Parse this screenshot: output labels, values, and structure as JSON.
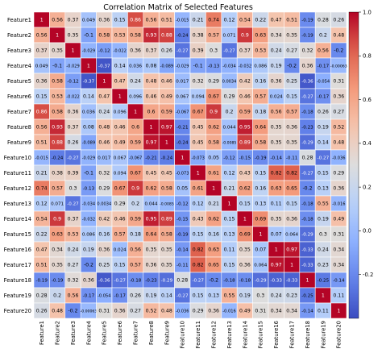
{
  "chart_data": {
    "type": "heatmap",
    "title": "Correlation Matrix of Selected Features",
    "colormap": "coolwarm",
    "vmin": -0.4,
    "vmax": 1.0,
    "colorbar_ticks": [
      -0.2,
      0.0,
      0.2,
      0.4,
      0.6,
      0.8,
      1.0
    ],
    "labels": [
      "Feature1",
      "Feature2",
      "Feature3",
      "Feature4",
      "Feature5",
      "Feature6",
      "Feature7",
      "Feature8",
      "Feature9",
      "Feature10",
      "Feature11",
      "Feature12",
      "Feature13",
      "Feature14",
      "Feature15",
      "Feature16",
      "Feature17",
      "Feature18",
      "Feature19",
      "Feature20"
    ],
    "matrix": [
      [
        1,
        0.56,
        0.37,
        0.049,
        0.36,
        0.15,
        0.86,
        0.56,
        0.51,
        -0.015,
        0.21,
        0.74,
        0.12,
        0.54,
        0.22,
        0.47,
        0.51,
        -0.19,
        0.28,
        0.26
      ],
      [
        0.56,
        1,
        0.35,
        -0.1,
        0.58,
        0.53,
        0.58,
        0.93,
        0.88,
        -0.24,
        0.38,
        0.57,
        0.071,
        0.9,
        0.63,
        0.34,
        0.35,
        -0.19,
        0.2,
        0.48
      ],
      [
        0.37,
        0.35,
        1,
        -0.029,
        -0.12,
        -0.022,
        0.36,
        0.37,
        0.26,
        -0.27,
        0.39,
        0.3,
        -0.27,
        0.37,
        0.53,
        0.24,
        0.27,
        0.32,
        0.56,
        -0.2
      ],
      [
        0.049,
        -0.1,
        -0.029,
        1,
        -0.37,
        0.14,
        0.036,
        0.08,
        -0.089,
        -0.029,
        -0.1,
        -0.13,
        -0.034,
        -0.032,
        0.086,
        0.19,
        -0.2,
        0.36,
        -0.17,
        -0.00063
      ],
      [
        0.36,
        0.58,
        -0.12,
        -0.37,
        1,
        0.47,
        0.24,
        0.48,
        0.46,
        0.017,
        0.32,
        0.29,
        0.0034,
        0.42,
        0.16,
        0.36,
        0.25,
        -0.36,
        -0.054,
        0.31
      ],
      [
        0.15,
        0.53,
        -0.022,
        0.14,
        0.47,
        1,
        0.096,
        0.46,
        0.49,
        0.067,
        0.094,
        0.67,
        0.29,
        0.46,
        0.57,
        0.024,
        0.15,
        -0.27,
        -0.17,
        0.36
      ],
      [
        0.86,
        0.58,
        0.36,
        0.036,
        0.24,
        0.096,
        1,
        0.6,
        0.59,
        -0.067,
        0.67,
        0.9,
        0.2,
        0.59,
        0.18,
        0.56,
        0.57,
        -0.18,
        0.26,
        0.27
      ],
      [
        0.56,
        0.93,
        0.37,
        0.08,
        0.48,
        0.46,
        0.6,
        1,
        0.97,
        -0.21,
        0.45,
        0.62,
        0.044,
        0.95,
        0.64,
        0.35,
        0.36,
        -0.23,
        0.19,
        0.52
      ],
      [
        0.51,
        0.88,
        0.26,
        -0.089,
        0.46,
        0.49,
        0.59,
        0.97,
        1,
        -0.24,
        0.45,
        0.58,
        -0.0085,
        0.89,
        0.58,
        0.35,
        0.35,
        -0.29,
        0.14,
        0.48
      ],
      [
        -0.015,
        -0.24,
        -0.27,
        -0.029,
        0.017,
        0.067,
        -0.067,
        -0.21,
        -0.24,
        1,
        -0.073,
        0.05,
        -0.12,
        -0.15,
        -0.19,
        -0.14,
        -0.11,
        0.28,
        -0.27,
        -0.036
      ],
      [
        0.21,
        0.38,
        0.39,
        -0.1,
        0.32,
        0.094,
        0.67,
        0.45,
        0.45,
        -0.073,
        1,
        0.61,
        0.12,
        0.43,
        0.15,
        0.82,
        0.82,
        -0.27,
        0.15,
        0.29
      ],
      [
        0.74,
        0.57,
        0.3,
        -0.13,
        0.29,
        0.67,
        0.9,
        0.62,
        0.58,
        0.05,
        0.61,
        1,
        0.21,
        0.62,
        0.16,
        0.63,
        0.65,
        -0.2,
        0.13,
        0.36
      ],
      [
        0.12,
        0.071,
        -0.27,
        -0.034,
        0.0034,
        0.29,
        0.2,
        0.044,
        -0.0085,
        -0.12,
        0.12,
        0.21,
        1,
        0.15,
        0.13,
        0.11,
        0.15,
        -0.18,
        0.55,
        -0.016
      ],
      [
        0.54,
        0.9,
        0.37,
        -0.032,
        0.42,
        0.46,
        0.59,
        0.95,
        0.89,
        -0.15,
        0.43,
        0.62,
        0.15,
        1,
        0.69,
        0.35,
        0.36,
        -0.18,
        0.19,
        0.49
      ],
      [
        0.22,
        0.63,
        0.53,
        0.086,
        0.16,
        0.57,
        0.18,
        0.64,
        0.58,
        -0.19,
        0.15,
        0.16,
        0.13,
        0.69,
        1,
        0.07,
        0.064,
        -0.29,
        0.3,
        0.31
      ],
      [
        0.47,
        0.34,
        0.24,
        0.19,
        0.36,
        0.024,
        0.56,
        0.35,
        0.35,
        -0.14,
        0.82,
        0.63,
        0.11,
        0.35,
        0.07,
        1,
        0.97,
        -0.33,
        0.24,
        0.34
      ],
      [
        0.51,
        0.35,
        0.27,
        -0.2,
        0.25,
        0.15,
        0.57,
        0.36,
        0.35,
        -0.11,
        0.82,
        0.65,
        0.15,
        0.36,
        0.064,
        0.97,
        1,
        -0.33,
        0.23,
        0.34
      ],
      [
        -0.19,
        -0.19,
        0.32,
        0.36,
        -0.36,
        -0.27,
        -0.18,
        -0.23,
        -0.29,
        0.28,
        -0.27,
        -0.2,
        -0.18,
        -0.18,
        -0.29,
        -0.33,
        -0.33,
        1,
        -0.25,
        -0.14
      ],
      [
        0.28,
        0.2,
        0.56,
        -0.17,
        -0.054,
        -0.17,
        0.26,
        0.19,
        0.14,
        -0.27,
        0.15,
        0.13,
        0.55,
        0.19,
        0.3,
        0.24,
        0.23,
        -0.25,
        1,
        0.11
      ],
      [
        0.26,
        0.48,
        -0.2,
        -0.00063,
        0.31,
        0.36,
        0.27,
        0.52,
        0.48,
        -0.036,
        0.29,
        0.36,
        -0.016,
        0.49,
        0.31,
        0.34,
        0.34,
        -0.14,
        0.11,
        1
      ]
    ]
  }
}
